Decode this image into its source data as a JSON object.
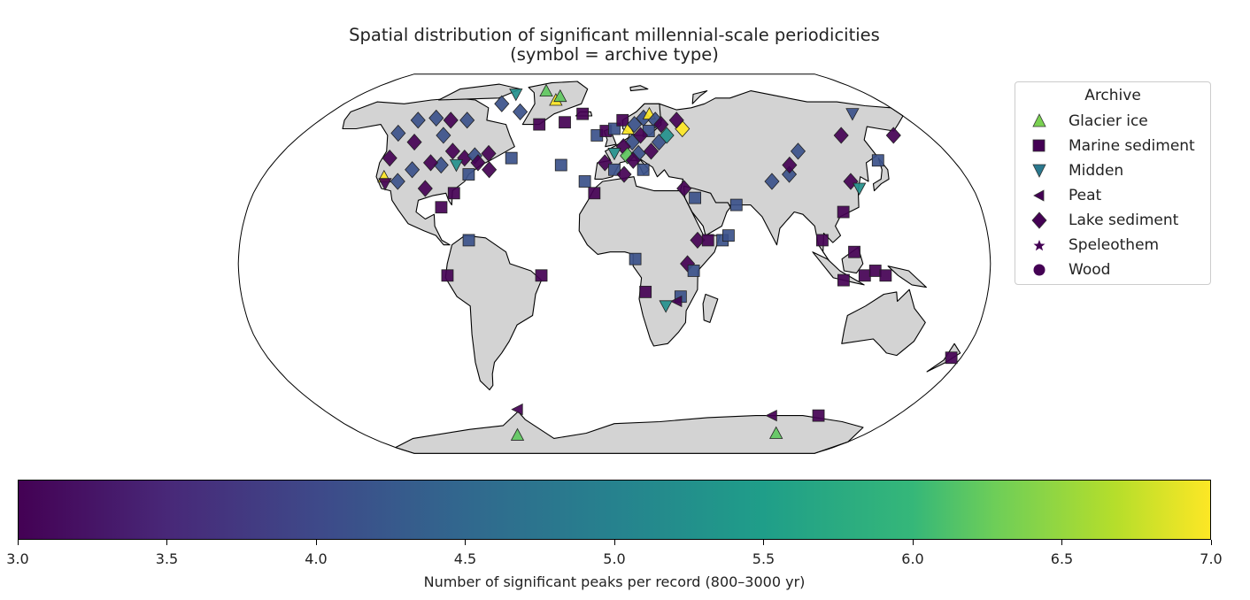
{
  "title_line1": "Spatial distribution of significant millennial-scale periodicities",
  "title_line2": "(symbol = archive type)",
  "legend": {
    "title": "Archive",
    "items": [
      {
        "label": "Glacier ice",
        "marker": "triangle-up",
        "color": "#7ad151"
      },
      {
        "label": "Marine sediment",
        "marker": "square",
        "color": "#440154"
      },
      {
        "label": "Midden",
        "marker": "triangle-down",
        "color": "#2a788e"
      },
      {
        "label": "Peat",
        "marker": "triangle-left",
        "color": "#440154"
      },
      {
        "label": "Lake sediment",
        "marker": "diamond",
        "color": "#440154"
      },
      {
        "label": "Speleothem",
        "marker": "star",
        "color": "#440154"
      },
      {
        "label": "Wood",
        "marker": "circle",
        "color": "#440154"
      }
    ]
  },
  "colorbar": {
    "label": "Number of significant peaks per record (800–3000 yr)",
    "min": 3.0,
    "max": 7.0,
    "ticks": [
      "3.0",
      "3.5",
      "4.0",
      "4.5",
      "5.0",
      "5.5",
      "6.0",
      "6.5",
      "7.0"
    ],
    "colormap": "viridis"
  },
  "map": {
    "projection": "Robinson",
    "land_color": "#d3d3d3",
    "ocean_color": "#ffffff"
  },
  "sites": [
    {
      "lon": -50,
      "lat": 77,
      "archive": "Glacier ice",
      "value": 6
    },
    {
      "lon": -70,
      "lat": 75,
      "archive": "Midden",
      "value": 5
    },
    {
      "lon": -40,
      "lat": 72,
      "archive": "Glacier ice",
      "value": 7
    },
    {
      "lon": -38,
      "lat": 74,
      "archive": "Glacier ice",
      "value": 6
    },
    {
      "lon": -75,
      "lat": 70,
      "archive": "Lake sediment",
      "value": 4
    },
    {
      "lon": -60,
      "lat": 66,
      "archive": "Lake sediment",
      "value": 4
    },
    {
      "lon": -100,
      "lat": 62,
      "archive": "Lake sediment",
      "value": 3
    },
    {
      "lon": -110,
      "lat": 63,
      "archive": "Lake sediment",
      "value": 4
    },
    {
      "lon": -120,
      "lat": 62,
      "archive": "Lake sediment",
      "value": 4
    },
    {
      "lon": -90,
      "lat": 62,
      "archive": "Lake sediment",
      "value": 4
    },
    {
      "lon": -125,
      "lat": 56,
      "archive": "Lake sediment",
      "value": 4
    },
    {
      "lon": -112,
      "lat": 52,
      "archive": "Lake sediment",
      "value": 3
    },
    {
      "lon": -98,
      "lat": 55,
      "archive": "Lake sediment",
      "value": 4
    },
    {
      "lon": -88,
      "lat": 48,
      "archive": "Lake sediment",
      "value": 3
    },
    {
      "lon": -80,
      "lat": 45,
      "archive": "Lake sediment",
      "value": 3
    },
    {
      "lon": -75,
      "lat": 46,
      "archive": "Lake sediment",
      "value": 4
    },
    {
      "lon": -68,
      "lat": 47,
      "archive": "Lake sediment",
      "value": 3
    },
    {
      "lon": -72,
      "lat": 43,
      "archive": "Lake sediment",
      "value": 3
    },
    {
      "lon": -83,
      "lat": 42,
      "archive": "Midden",
      "value": 5
    },
    {
      "lon": -91,
      "lat": 42,
      "archive": "Lake sediment",
      "value": 4
    },
    {
      "lon": -97,
      "lat": 43,
      "archive": "Lake sediment",
      "value": 3
    },
    {
      "lon": -105,
      "lat": 40,
      "archive": "Lake sediment",
      "value": 4
    },
    {
      "lon": -120,
      "lat": 45,
      "archive": "Lake sediment",
      "value": 3
    },
    {
      "lon": -118,
      "lat": 37,
      "archive": "Glacier ice",
      "value": 7
    },
    {
      "lon": -116,
      "lat": 34,
      "archive": "Midden",
      "value": 3
    },
    {
      "lon": -110,
      "lat": 35,
      "archive": "Lake sediment",
      "value": 4
    },
    {
      "lon": -95,
      "lat": 32,
      "archive": "Lake sediment",
      "value": 3
    },
    {
      "lon": -80,
      "lat": 30,
      "archive": "Marine sediment",
      "value": 3
    },
    {
      "lon": -75,
      "lat": 38,
      "archive": "Marine sediment",
      "value": 4
    },
    {
      "lon": -65,
      "lat": 40,
      "archive": "Lake sediment",
      "value": 3
    },
    {
      "lon": -55,
      "lat": 45,
      "archive": "Marine sediment",
      "value": 4
    },
    {
      "lon": -45,
      "lat": 60,
      "archive": "Marine sediment",
      "value": 3
    },
    {
      "lon": -30,
      "lat": 61,
      "archive": "Marine sediment",
      "value": 3
    },
    {
      "lon": -28,
      "lat": 42,
      "archive": "Marine sediment",
      "value": 4
    },
    {
      "lon": -85,
      "lat": 24,
      "archive": "Marine sediment",
      "value": 3
    },
    {
      "lon": -70,
      "lat": 10,
      "archive": "Marine sediment",
      "value": 4
    },
    {
      "lon": -80,
      "lat": -5,
      "archive": "Marine sediment",
      "value": 3
    },
    {
      "lon": -35,
      "lat": -5,
      "archive": "Marine sediment",
      "value": 3
    },
    {
      "lon": -20,
      "lat": 65,
      "archive": "Marine sediment",
      "value": 3
    },
    {
      "lon": -10,
      "lat": 55,
      "archive": "Marine sediment",
      "value": 4
    },
    {
      "lon": -5,
      "lat": 57,
      "archive": "Marine sediment",
      "value": 3
    },
    {
      "lon": 0,
      "lat": 58,
      "archive": "Marine sediment",
      "value": 4
    },
    {
      "lon": 5,
      "lat": 62,
      "archive": "Marine sediment",
      "value": 3
    },
    {
      "lon": 8,
      "lat": 58,
      "archive": "Glacier ice",
      "value": 7
    },
    {
      "lon": 12,
      "lat": 60,
      "archive": "Lake sediment",
      "value": 4
    },
    {
      "lon": 18,
      "lat": 63,
      "archive": "Lake sediment",
      "value": 4
    },
    {
      "lon": 22,
      "lat": 65,
      "archive": "Glacier ice",
      "value": 7
    },
    {
      "lon": 25,
      "lat": 62,
      "archive": "Lake sediment",
      "value": 4
    },
    {
      "lon": 28,
      "lat": 60,
      "archive": "Lake sediment",
      "value": 3
    },
    {
      "lon": 20,
      "lat": 57,
      "archive": "Marine sediment",
      "value": 4
    },
    {
      "lon": 15,
      "lat": 55,
      "archive": "Lake sediment",
      "value": 3
    },
    {
      "lon": 10,
      "lat": 52,
      "archive": "Lake sediment",
      "value": 4
    },
    {
      "lon": 5,
      "lat": 50,
      "archive": "Lake sediment",
      "value": 3
    },
    {
      "lon": 0,
      "lat": 47,
      "archive": "Midden",
      "value": 5
    },
    {
      "lon": 7,
      "lat": 46,
      "archive": "Lake sediment",
      "value": 6
    },
    {
      "lon": 13,
      "lat": 47,
      "archive": "Lake sediment",
      "value": 4
    },
    {
      "lon": 20,
      "lat": 48,
      "archive": "Lake sediment",
      "value": 3
    },
    {
      "lon": 25,
      "lat": 52,
      "archive": "Lake sediment",
      "value": 4
    },
    {
      "lon": 30,
      "lat": 55,
      "archive": "Lake sediment",
      "value": 5
    },
    {
      "lon": 40,
      "lat": 58,
      "archive": "Lake sediment",
      "value": 7
    },
    {
      "lon": 38,
      "lat": 62,
      "archive": "Lake sediment",
      "value": 3
    },
    {
      "lon": -5,
      "lat": 43,
      "archive": "Lake sediment",
      "value": 3
    },
    {
      "lon": 0,
      "lat": 40,
      "archive": "Marine sediment",
      "value": 4
    },
    {
      "lon": 5,
      "lat": 38,
      "archive": "Lake sediment",
      "value": 3
    },
    {
      "lon": -15,
      "lat": 35,
      "archive": "Marine sediment",
      "value": 4
    },
    {
      "lon": -10,
      "lat": 30,
      "archive": "Marine sediment",
      "value": 3
    },
    {
      "lon": 15,
      "lat": 40,
      "archive": "Marine sediment",
      "value": 4
    },
    {
      "lon": 10,
      "lat": 44,
      "archive": "Lake sediment",
      "value": 3
    },
    {
      "lon": 35,
      "lat": 32,
      "archive": "Lake sediment",
      "value": 3
    },
    {
      "lon": 40,
      "lat": 28,
      "archive": "Marine sediment",
      "value": 4
    },
    {
      "lon": 60,
      "lat": 25,
      "archive": "Marine sediment",
      "value": 4
    },
    {
      "lon": 80,
      "lat": 35,
      "archive": "Lake sediment",
      "value": 4
    },
    {
      "lon": 90,
      "lat": 38,
      "archive": "Lake sediment",
      "value": 4
    },
    {
      "lon": 92,
      "lat": 42,
      "archive": "Lake sediment",
      "value": 3
    },
    {
      "lon": 100,
      "lat": 48,
      "archive": "Lake sediment",
      "value": 4
    },
    {
      "lon": 130,
      "lat": 55,
      "archive": "Lake sediment",
      "value": 3
    },
    {
      "lon": 140,
      "lat": 44,
      "archive": "Marine sediment",
      "value": 4
    },
    {
      "lon": 120,
      "lat": 35,
      "archive": "Lake sediment",
      "value": 3
    },
    {
      "lon": 123,
      "lat": 32,
      "archive": "Midden",
      "value": 5
    },
    {
      "lon": 112,
      "lat": 22,
      "archive": "Marine sediment",
      "value": 3
    },
    {
      "lon": 100,
      "lat": 10,
      "archive": "Marine sediment",
      "value": 3
    },
    {
      "lon": 115,
      "lat": 5,
      "archive": "Marine sediment",
      "value": 3
    },
    {
      "lon": 120,
      "lat": -5,
      "archive": "Marine sediment",
      "value": 3
    },
    {
      "lon": 125,
      "lat": -3,
      "archive": "Marine sediment",
      "value": 3
    },
    {
      "lon": 130,
      "lat": -5,
      "archive": "Marine sediment",
      "value": 3
    },
    {
      "lon": 110,
      "lat": -7,
      "archive": "Marine sediment",
      "value": 3
    },
    {
      "lon": 175,
      "lat": -40,
      "archive": "Marine sediment",
      "value": 3
    },
    {
      "lon": 150,
      "lat": 65,
      "archive": "Midden",
      "value": 4
    },
    {
      "lon": 160,
      "lat": 55,
      "archive": "Lake sediment",
      "value": 3
    },
    {
      "lon": 40,
      "lat": 10,
      "archive": "Lake sediment",
      "value": 3
    },
    {
      "lon": 45,
      "lat": 10,
      "archive": "Marine sediment",
      "value": 3
    },
    {
      "lon": 52,
      "lat": 10,
      "archive": "Marine sediment",
      "value": 4
    },
    {
      "lon": 55,
      "lat": 12,
      "archive": "Marine sediment",
      "value": 4
    },
    {
      "lon": 35,
      "lat": 0,
      "archive": "Lake sediment",
      "value": 3
    },
    {
      "lon": 38,
      "lat": -3,
      "archive": "Marine sediment",
      "value": 4
    },
    {
      "lon": 32,
      "lat": -14,
      "archive": "Marine sediment",
      "value": 4
    },
    {
      "lon": 30,
      "lat": -16,
      "archive": "Peat",
      "value": 3
    },
    {
      "lon": 25,
      "lat": -18,
      "archive": "Midden",
      "value": 5
    },
    {
      "lon": 15,
      "lat": -12,
      "archive": "Marine sediment",
      "value": 3
    },
    {
      "lon": 10,
      "lat": 2,
      "archive": "Marine sediment",
      "value": 4
    },
    {
      "lon": -60,
      "lat": -63,
      "archive": "Peat",
      "value": 3
    },
    {
      "lon": -70,
      "lat": -76,
      "archive": "Glacier ice",
      "value": 6
    },
    {
      "lon": 100,
      "lat": -66,
      "archive": "Peat",
      "value": 3
    },
    {
      "lon": 130,
      "lat": -66,
      "archive": "Marine sediment",
      "value": 3
    },
    {
      "lon": 115,
      "lat": -75,
      "archive": "Glacier ice",
      "value": 6
    }
  ]
}
